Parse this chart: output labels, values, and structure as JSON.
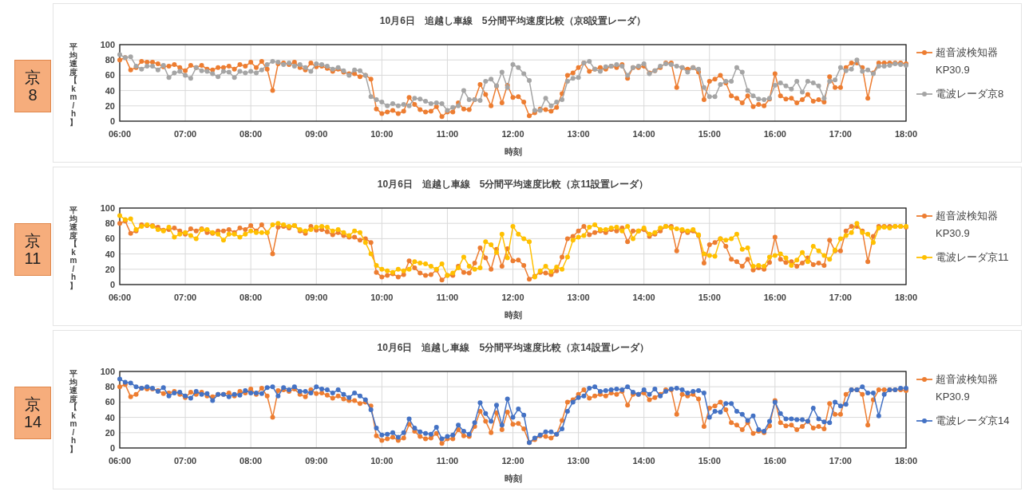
{
  "chart_data": [
    {
      "type": "line",
      "title": "10月6日　追越し車線　5分間平均速度比較（京8設置レーダ）",
      "xlabel": "時刻",
      "ylabel": "平均速度【km/h】",
      "annotations": [
        "京8"
      ],
      "x": [
        6,
        6.0833,
        6.1667,
        6.25,
        6.3333,
        6.4167,
        6.5,
        6.5833,
        6.6667,
        6.75,
        6.8333,
        6.9167,
        7,
        7.0833,
        7.1667,
        7.25,
        7.3333,
        7.4167,
        7.5,
        7.5833,
        7.6667,
        7.75,
        7.8333,
        7.9167,
        8,
        8.0833,
        8.1667,
        8.25,
        8.3333,
        8.4167,
        8.5,
        8.5833,
        8.6667,
        8.75,
        8.8333,
        8.9167,
        9,
        9.0833,
        9.1667,
        9.25,
        9.3333,
        9.4167,
        9.5,
        9.5833,
        9.6667,
        9.75,
        9.8333,
        9.9167,
        10,
        10.0833,
        10.1667,
        10.25,
        10.3333,
        10.4167,
        10.5,
        10.5833,
        10.6667,
        10.75,
        10.8333,
        10.9167,
        11,
        11.0833,
        11.1667,
        11.25,
        11.3333,
        11.4167,
        11.5,
        11.5833,
        11.6667,
        11.75,
        11.8333,
        11.9167,
        12,
        12.0833,
        12.1667,
        12.25,
        12.3333,
        12.4167,
        12.5,
        12.5833,
        12.6667,
        12.75,
        12.8333,
        12.9167,
        13,
        13.0833,
        13.1667,
        13.25,
        13.3333,
        13.4167,
        13.5,
        13.5833,
        13.6667,
        13.75,
        13.8333,
        13.9167,
        14,
        14.0833,
        14.1667,
        14.25,
        14.3333,
        14.4167,
        14.5,
        14.5833,
        14.6667,
        14.75,
        14.8333,
        14.9167,
        15,
        15.0833,
        15.1667,
        15.25,
        15.3333,
        15.4167,
        15.5,
        15.5833,
        15.6667,
        15.75,
        15.8333,
        15.9167,
        16,
        16.0833,
        16.1667,
        16.25,
        16.3333,
        16.4167,
        16.5,
        16.5833,
        16.6667,
        16.75,
        16.8333,
        16.9167,
        17,
        17.0833,
        17.1667,
        17.25,
        17.3333,
        17.4167,
        17.5,
        17.5833,
        17.6667,
        17.75,
        17.8333,
        17.9167,
        18
      ],
      "series": [
        {
          "name": "超音波検知器 KP30.9",
          "color": "#ed7d31",
          "values": [
            80,
            83,
            67,
            70,
            78,
            77,
            77,
            75,
            71,
            72,
            74,
            70,
            66,
            73,
            70,
            73,
            68,
            67,
            70,
            70,
            72,
            68,
            74,
            72,
            77,
            70,
            78,
            68,
            40,
            75,
            76,
            74,
            77,
            70,
            67,
            76,
            71,
            72,
            69,
            65,
            68,
            64,
            62,
            62,
            58,
            60,
            55,
            16,
            10,
            12,
            14,
            10,
            13,
            31,
            22,
            15,
            12,
            13,
            19,
            6,
            12,
            12,
            24,
            16,
            15,
            28,
            48,
            35,
            20,
            46,
            24,
            47,
            31,
            32,
            25,
            7,
            11,
            16,
            15,
            13,
            18,
            36,
            60,
            63,
            70,
            76,
            65,
            68,
            70,
            68,
            72,
            70,
            74,
            56,
            70,
            70,
            72,
            63,
            66,
            70,
            76,
            76,
            44,
            70,
            68,
            70,
            64,
            28,
            52,
            55,
            60,
            50,
            33,
            30,
            24,
            33,
            19,
            22,
            20,
            29,
            62,
            33,
            29,
            30,
            24,
            28,
            35,
            26,
            28,
            25,
            58,
            44,
            44,
            70,
            76,
            76,
            70,
            30,
            63,
            76,
            76,
            76,
            76,
            76,
            75
          ]
        },
        {
          "name": "電波レーダ京8",
          "color": "#a5a5a5",
          "values": [
            87,
            83,
            84,
            72,
            68,
            72,
            72,
            67,
            73,
            57,
            63,
            65,
            60,
            56,
            70,
            66,
            65,
            62,
            58,
            65,
            64,
            57,
            65,
            63,
            65,
            63,
            67,
            74,
            78,
            77,
            74,
            76,
            72,
            74,
            70,
            65,
            75,
            74,
            72,
            68,
            70,
            66,
            60,
            67,
            66,
            60,
            32,
            28,
            25,
            20,
            23,
            20,
            22,
            20,
            30,
            29,
            26,
            23,
            24,
            23,
            14,
            18,
            20,
            40,
            28,
            28,
            27,
            52,
            55,
            46,
            64,
            44,
            74,
            70,
            62,
            53,
            14,
            14,
            30,
            20,
            25,
            28,
            52,
            56,
            57,
            76,
            78,
            68,
            65,
            71,
            72,
            74,
            72,
            60,
            70,
            72,
            75,
            62,
            66,
            72,
            75,
            74,
            72,
            70,
            64,
            70,
            68,
            44,
            32,
            32,
            48,
            52,
            52,
            70,
            64,
            40,
            33,
            29,
            28,
            30,
            47,
            50,
            46,
            42,
            52,
            38,
            52,
            50,
            46,
            30,
            52,
            54,
            70,
            66,
            68,
            80,
            65,
            67,
            62,
            72,
            72,
            73,
            75,
            74,
            73
          ]
        }
      ],
      "xlim": [
        6,
        18
      ],
      "xticks": [
        {
          "value": 6,
          "label": "06:00"
        },
        {
          "value": 7,
          "label": "07:00"
        },
        {
          "value": 8,
          "label": "08:00"
        },
        {
          "value": 9,
          "label": "09:00"
        },
        {
          "value": 10,
          "label": "10:00"
        },
        {
          "value": 11,
          "label": "11:00"
        },
        {
          "value": 12,
          "label": "12:00"
        },
        {
          "value": 13,
          "label": "13:00"
        },
        {
          "value": 14,
          "label": "14:00"
        },
        {
          "value": 15,
          "label": "15:00"
        },
        {
          "value": 16,
          "label": "16:00"
        },
        {
          "value": 17,
          "label": "17:00"
        },
        {
          "value": 18,
          "label": "18:00"
        }
      ],
      "ylim": [
        0,
        100
      ],
      "yticks": [
        0,
        20,
        40,
        60,
        80,
        100
      ],
      "grid": true,
      "legend": "right",
      "marker": "circle"
    },
    {
      "type": "line",
      "title": "10月6日　追越し車線　5分間平均速度比較（京11設置レーダ）",
      "xlabel": "時刻",
      "ylabel": "平均速度【km/h】",
      "annotations": [
        "京11"
      ],
      "x": [
        6,
        6.0833,
        6.1667,
        6.25,
        6.3333,
        6.4167,
        6.5,
        6.5833,
        6.6667,
        6.75,
        6.8333,
        6.9167,
        7,
        7.0833,
        7.1667,
        7.25,
        7.3333,
        7.4167,
        7.5,
        7.5833,
        7.6667,
        7.75,
        7.8333,
        7.9167,
        8,
        8.0833,
        8.1667,
        8.25,
        8.3333,
        8.4167,
        8.5,
        8.5833,
        8.6667,
        8.75,
        8.8333,
        8.9167,
        9,
        9.0833,
        9.1667,
        9.25,
        9.3333,
        9.4167,
        9.5,
        9.5833,
        9.6667,
        9.75,
        9.8333,
        9.9167,
        10,
        10.0833,
        10.1667,
        10.25,
        10.3333,
        10.4167,
        10.5,
        10.5833,
        10.6667,
        10.75,
        10.8333,
        10.9167,
        11,
        11.0833,
        11.1667,
        11.25,
        11.3333,
        11.4167,
        11.5,
        11.5833,
        11.6667,
        11.75,
        11.8333,
        11.9167,
        12,
        12.0833,
        12.1667,
        12.25,
        12.3333,
        12.4167,
        12.5,
        12.5833,
        12.6667,
        12.75,
        12.8333,
        12.9167,
        13,
        13.0833,
        13.1667,
        13.25,
        13.3333,
        13.4167,
        13.5,
        13.5833,
        13.6667,
        13.75,
        13.8333,
        13.9167,
        14,
        14.0833,
        14.1667,
        14.25,
        14.3333,
        14.4167,
        14.5,
        14.5833,
        14.6667,
        14.75,
        14.8333,
        14.9167,
        15,
        15.0833,
        15.1667,
        15.25,
        15.3333,
        15.4167,
        15.5,
        15.5833,
        15.6667,
        15.75,
        15.8333,
        15.9167,
        16,
        16.0833,
        16.1667,
        16.25,
        16.3333,
        16.4167,
        16.5,
        16.5833,
        16.6667,
        16.75,
        16.8333,
        16.9167,
        17,
        17.0833,
        17.1667,
        17.25,
        17.3333,
        17.4167,
        17.5,
        17.5833,
        17.6667,
        17.75,
        17.8333,
        17.9167,
        18
      ],
      "series": [
        {
          "name": "超音波検知器 KP30.9",
          "color": "#ed7d31",
          "values": [
            80,
            83,
            67,
            70,
            78,
            77,
            77,
            75,
            71,
            72,
            74,
            70,
            66,
            73,
            70,
            73,
            68,
            67,
            70,
            70,
            72,
            68,
            74,
            72,
            77,
            70,
            78,
            68,
            40,
            75,
            76,
            74,
            77,
            70,
            67,
            76,
            71,
            72,
            69,
            65,
            68,
            64,
            62,
            62,
            58,
            60,
            55,
            16,
            10,
            12,
            14,
            10,
            13,
            31,
            22,
            15,
            12,
            13,
            19,
            6,
            12,
            12,
            24,
            16,
            15,
            28,
            48,
            35,
            20,
            46,
            24,
            47,
            31,
            32,
            25,
            7,
            11,
            16,
            15,
            13,
            18,
            36,
            60,
            63,
            70,
            76,
            65,
            68,
            70,
            68,
            72,
            70,
            74,
            56,
            70,
            70,
            72,
            63,
            66,
            70,
            76,
            76,
            44,
            70,
            68,
            70,
            64,
            28,
            52,
            55,
            60,
            50,
            33,
            30,
            24,
            33,
            19,
            22,
            20,
            29,
            62,
            33,
            29,
            30,
            24,
            28,
            35,
            26,
            28,
            25,
            58,
            44,
            44,
            70,
            76,
            76,
            70,
            30,
            63,
            76,
            76,
            76,
            76,
            76,
            75
          ]
        },
        {
          "name": "電波レーダ京11",
          "color": "#ffc000",
          "values": [
            90,
            85,
            86,
            72,
            76,
            78,
            76,
            72,
            70,
            75,
            62,
            66,
            68,
            64,
            60,
            72,
            72,
            68,
            66,
            58,
            66,
            66,
            62,
            66,
            70,
            68,
            68,
            68,
            78,
            80,
            78,
            76,
            77,
            72,
            70,
            72,
            75,
            76,
            75,
            70,
            72,
            68,
            64,
            70,
            68,
            55,
            40,
            25,
            20,
            18,
            16,
            20,
            18,
            20,
            30,
            28,
            27,
            24,
            20,
            27,
            12,
            15,
            22,
            36,
            24,
            20,
            22,
            56,
            52,
            42,
            66,
            35,
            76,
            66,
            60,
            56,
            10,
            18,
            24,
            17,
            23,
            20,
            36,
            58,
            62,
            64,
            75,
            78,
            72,
            72,
            74,
            75,
            70,
            76,
            60,
            70,
            74,
            66,
            68,
            74,
            76,
            74,
            73,
            72,
            70,
            72,
            65,
            40,
            38,
            37,
            60,
            58,
            60,
            66,
            46,
            48,
            24,
            25,
            24,
            36,
            38,
            40,
            35,
            25,
            32,
            42,
            30,
            50,
            44,
            38,
            33,
            45,
            60,
            64,
            68,
            80,
            68,
            66,
            55,
            74,
            75,
            74,
            76,
            76,
            76
          ]
        }
      ],
      "xlim": [
        6,
        18
      ],
      "xticks": [
        {
          "value": 6,
          "label": "06:00"
        },
        {
          "value": 7,
          "label": "07:00"
        },
        {
          "value": 8,
          "label": "08:00"
        },
        {
          "value": 9,
          "label": "09:00"
        },
        {
          "value": 10,
          "label": "10:00"
        },
        {
          "value": 11,
          "label": "11:00"
        },
        {
          "value": 12,
          "label": "12:00"
        },
        {
          "value": 13,
          "label": "13:00"
        },
        {
          "value": 14,
          "label": "14:00"
        },
        {
          "value": 15,
          "label": "15:00"
        },
        {
          "value": 16,
          "label": "16:00"
        },
        {
          "value": 17,
          "label": "17:00"
        },
        {
          "value": 18,
          "label": "18:00"
        }
      ],
      "ylim": [
        0,
        100
      ],
      "yticks": [
        0,
        20,
        40,
        60,
        80,
        100
      ],
      "grid": true,
      "legend": "right",
      "marker": "circle"
    },
    {
      "type": "line",
      "title": "10月6日　追越し車線　5分間平均速度比較（京14設置レーダ）",
      "xlabel": "時刻",
      "ylabel": "平均速度【km/h】",
      "annotations": [
        "京14"
      ],
      "x": [
        6,
        6.0833,
        6.1667,
        6.25,
        6.3333,
        6.4167,
        6.5,
        6.5833,
        6.6667,
        6.75,
        6.8333,
        6.9167,
        7,
        7.0833,
        7.1667,
        7.25,
        7.3333,
        7.4167,
        7.5,
        7.5833,
        7.6667,
        7.75,
        7.8333,
        7.9167,
        8,
        8.0833,
        8.1667,
        8.25,
        8.3333,
        8.4167,
        8.5,
        8.5833,
        8.6667,
        8.75,
        8.8333,
        8.9167,
        9,
        9.0833,
        9.1667,
        9.25,
        9.3333,
        9.4167,
        9.5,
        9.5833,
        9.6667,
        9.75,
        9.8333,
        9.9167,
        10,
        10.0833,
        10.1667,
        10.25,
        10.3333,
        10.4167,
        10.5,
        10.5833,
        10.6667,
        10.75,
        10.8333,
        10.9167,
        11,
        11.0833,
        11.1667,
        11.25,
        11.3333,
        11.4167,
        11.5,
        11.5833,
        11.6667,
        11.75,
        11.8333,
        11.9167,
        12,
        12.0833,
        12.1667,
        12.25,
        12.3333,
        12.4167,
        12.5,
        12.5833,
        12.6667,
        12.75,
        12.8333,
        12.9167,
        13,
        13.0833,
        13.1667,
        13.25,
        13.3333,
        13.4167,
        13.5,
        13.5833,
        13.6667,
        13.75,
        13.8333,
        13.9167,
        14,
        14.0833,
        14.1667,
        14.25,
        14.3333,
        14.4167,
        14.5,
        14.5833,
        14.6667,
        14.75,
        14.8333,
        14.9167,
        15,
        15.0833,
        15.1667,
        15.25,
        15.3333,
        15.4167,
        15.5,
        15.5833,
        15.6667,
        15.75,
        15.8333,
        15.9167,
        16,
        16.0833,
        16.1667,
        16.25,
        16.3333,
        16.4167,
        16.5,
        16.5833,
        16.6667,
        16.75,
        16.8333,
        16.9167,
        17,
        17.0833,
        17.1667,
        17.25,
        17.3333,
        17.4167,
        17.5,
        17.5833,
        17.6667,
        17.75,
        17.8333,
        17.9167,
        18
      ],
      "series": [
        {
          "name": "超音波検知器 KP30.9",
          "color": "#ed7d31",
          "values": [
            80,
            83,
            67,
            70,
            78,
            77,
            77,
            75,
            71,
            72,
            74,
            70,
            66,
            73,
            70,
            73,
            68,
            67,
            70,
            70,
            72,
            68,
            74,
            72,
            77,
            70,
            78,
            68,
            40,
            75,
            76,
            74,
            77,
            70,
            67,
            76,
            71,
            72,
            69,
            65,
            68,
            64,
            62,
            62,
            58,
            60,
            55,
            16,
            10,
            12,
            14,
            10,
            13,
            31,
            22,
            15,
            12,
            13,
            19,
            6,
            12,
            12,
            24,
            16,
            15,
            28,
            48,
            35,
            20,
            46,
            24,
            47,
            31,
            32,
            25,
            7,
            11,
            16,
            15,
            13,
            18,
            36,
            60,
            63,
            70,
            76,
            65,
            68,
            70,
            68,
            72,
            70,
            74,
            56,
            70,
            70,
            72,
            63,
            66,
            70,
            76,
            76,
            44,
            70,
            68,
            70,
            64,
            28,
            52,
            55,
            60,
            50,
            33,
            30,
            24,
            33,
            19,
            22,
            20,
            29,
            62,
            33,
            29,
            30,
            24,
            28,
            35,
            26,
            28,
            25,
            58,
            44,
            44,
            70,
            76,
            76,
            70,
            30,
            63,
            76,
            76,
            76,
            76,
            76,
            75
          ]
        },
        {
          "name": "電波レーダ京14",
          "color": "#4472c4",
          "values": [
            90,
            86,
            85,
            80,
            78,
            80,
            78,
            74,
            79,
            68,
            72,
            73,
            68,
            65,
            74,
            70,
            71,
            62,
            70,
            70,
            67,
            70,
            69,
            75,
            72,
            72,
            71,
            79,
            80,
            68,
            79,
            76,
            80,
            74,
            74,
            72,
            80,
            77,
            76,
            72,
            76,
            70,
            66,
            72,
            68,
            63,
            50,
            26,
            17,
            18,
            20,
            14,
            20,
            38,
            26,
            21,
            19,
            18,
            27,
            12,
            15,
            17,
            30,
            22,
            18,
            33,
            59,
            45,
            35,
            56,
            30,
            64,
            40,
            51,
            43,
            7,
            13,
            17,
            21,
            21,
            18,
            25,
            48,
            60,
            66,
            68,
            78,
            80,
            74,
            75,
            76,
            77,
            76,
            80,
            73,
            70,
            76,
            70,
            77,
            68,
            74,
            77,
            78,
            76,
            72,
            74,
            75,
            72,
            40,
            48,
            47,
            58,
            58,
            48,
            44,
            36,
            42,
            24,
            22,
            35,
            60,
            45,
            38,
            38,
            37,
            37,
            35,
            52,
            38,
            34,
            33,
            60,
            55,
            57,
            76,
            76,
            80,
            72,
            72,
            42,
            70,
            76,
            76,
            78,
            78
          ]
        }
      ],
      "xlim": [
        6,
        18
      ],
      "xticks": [
        {
          "value": 6,
          "label": "06:00"
        },
        {
          "value": 7,
          "label": "07:00"
        },
        {
          "value": 8,
          "label": "08:00"
        },
        {
          "value": 9,
          "label": "09:00"
        },
        {
          "value": 10,
          "label": "10:00"
        },
        {
          "value": 11,
          "label": "11:00"
        },
        {
          "value": 12,
          "label": "12:00"
        },
        {
          "value": 13,
          "label": "13:00"
        },
        {
          "value": 14,
          "label": "14:00"
        },
        {
          "value": 15,
          "label": "15:00"
        },
        {
          "value": 16,
          "label": "16:00"
        },
        {
          "value": 17,
          "label": "17:00"
        },
        {
          "value": 18,
          "label": "18:00"
        }
      ],
      "ylim": [
        0,
        100
      ],
      "yticks": [
        0,
        20,
        40,
        60,
        80,
        100
      ],
      "grid": true,
      "legend": "right",
      "marker": "circle"
    }
  ]
}
